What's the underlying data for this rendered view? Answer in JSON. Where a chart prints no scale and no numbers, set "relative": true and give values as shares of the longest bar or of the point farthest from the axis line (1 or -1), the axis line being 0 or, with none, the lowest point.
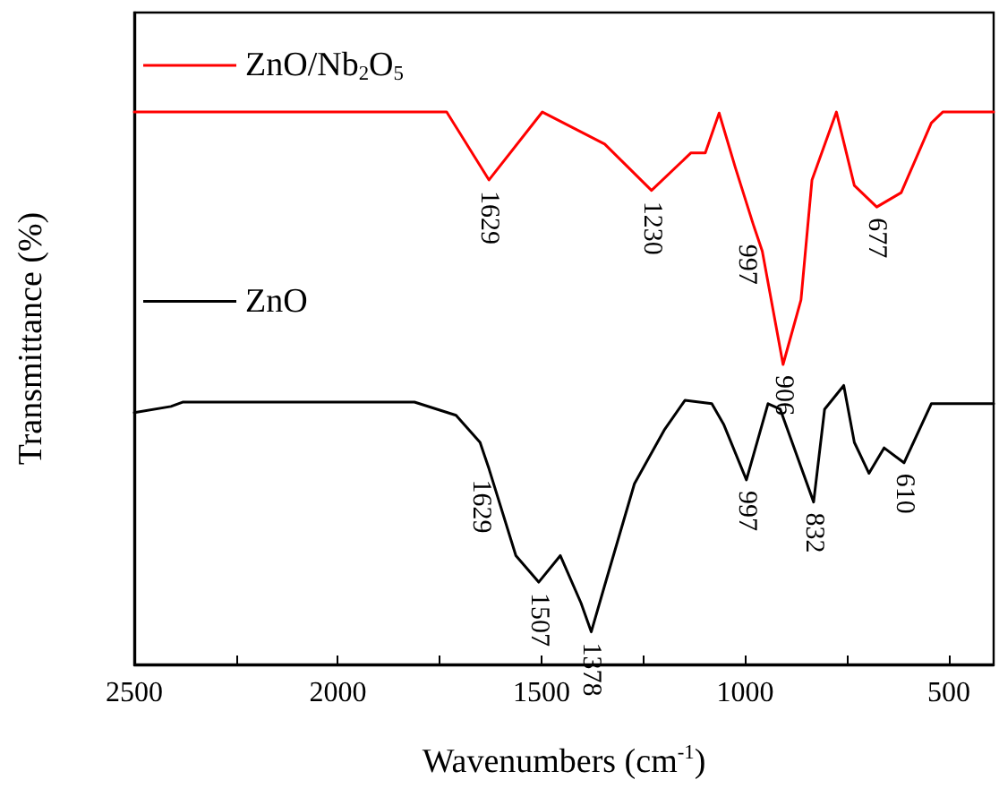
{
  "chart_data": {
    "type": "line",
    "relative": true,
    "xlabel": "Wavenumbers (cm$^{-1}$)",
    "ylabel": "Transmittance (%)",
    "xlim": [
      2500,
      390
    ],
    "xticks": [
      2500,
      {
        "value": 2250,
        "label": null
      },
      2000,
      {
        "value": 1750,
        "label": null
      },
      1500,
      {
        "value": 1250,
        "label": null
      },
      1000,
      {
        "value": 750,
        "label": null
      },
      500
    ],
    "legend": "top left",
    "grid": false,
    "marker": "none",
    "line_style": "solid",
    "series": [
      {
        "name": "ZnO/Nb$_{2}$O$_{5}$",
        "color": "#ff0000",
        "x": [
          2500,
          1733,
          1629,
          1498,
          1345,
          1230,
          1133,
          1098,
          1064,
          1024,
          980,
          958,
          907,
          863,
          836,
          776,
          732,
          677,
          617,
          543,
          515,
          390
        ],
        "values": [
          1,
          1,
          0.877,
          1,
          0.942,
          0.858,
          0.926,
          0.926,
          0.998,
          0.899,
          0.796,
          0.748,
          0.543,
          0.66,
          0.877,
          1,
          0.867,
          0.828,
          0.854,
          0.98,
          1,
          1
        ]
      },
      {
        "name": "ZnO",
        "color": "#000000",
        "x": [
          2500,
          2410,
          2380,
          1812,
          1710,
          1651,
          1629,
          1563,
          1507,
          1454,
          1403,
          1378,
          1345,
          1272,
          1199,
          1148,
          1082,
          1053,
          997,
          944,
          914,
          832,
          805,
          758,
          732,
          696,
          659,
          610,
          543,
          390
        ],
        "values": [
          0.456,
          0.467,
          0.475,
          0.475,
          0.451,
          0.402,
          0.354,
          0.197,
          0.149,
          0.197,
          0.111,
          0.059,
          0.143,
          0.327,
          0.424,
          0.478,
          0.472,
          0.435,
          0.334,
          0.472,
          0.462,
          0.294,
          0.462,
          0.505,
          0.402,
          0.346,
          0.392,
          0.365,
          0.472,
          0.472
        ]
      }
    ],
    "annotations": [
      {
        "text": "1629",
        "x": 1629,
        "y": 0.877
      },
      {
        "text": "1230",
        "x": 1230,
        "y": 0.858
      },
      {
        "text": "997",
        "x": 997,
        "y": 0.78
      },
      {
        "text": "906",
        "x": 907,
        "y": 0.543
      },
      {
        "text": "677",
        "x": 677,
        "y": 0.828
      },
      {
        "text": "1629",
        "x": 1650,
        "y": 0.354
      },
      {
        "text": "1507",
        "x": 1507,
        "y": 0.149
      },
      {
        "text": "1378",
        "x": 1378,
        "y": 0.059
      },
      {
        "text": "997",
        "x": 997,
        "y": 0.334
      },
      {
        "text": "832",
        "x": 832,
        "y": 0.294
      },
      {
        "text": "610",
        "x": 610,
        "y": 0.365
      }
    ]
  }
}
